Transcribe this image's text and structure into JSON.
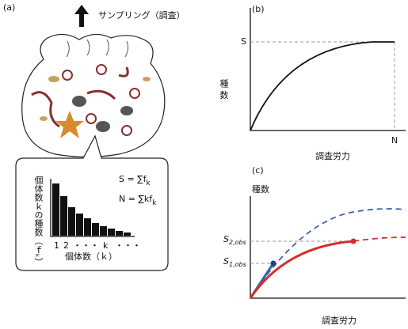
{
  "panel_a": {
    "label": "(a)",
    "sampling": "サンプリング（調査）",
    "formula_s": {
      "text": "S = ∑f",
      "sub": "k"
    },
    "formula_n": {
      "text": "N = ∑kf",
      "sub": "k"
    },
    "y_label": "個体数ｋの種数（ｆₖ）",
    "x_ticks": [
      "1",
      "2",
      "・・・",
      "k",
      "・・・"
    ],
    "x_label": "個体数（ｋ）"
  },
  "panel_b": {
    "label": "(b)",
    "s_label": "S",
    "n_label": "N",
    "y_label": "種 数",
    "x_label": "調査労力"
  },
  "panel_c": {
    "label": "(c)",
    "y_label": "種数",
    "s2": {
      "text": "S",
      "sub": "2,obs"
    },
    "s1": {
      "text": "S",
      "sub": "1,obs"
    },
    "x_label": "調査労力"
  }
}
